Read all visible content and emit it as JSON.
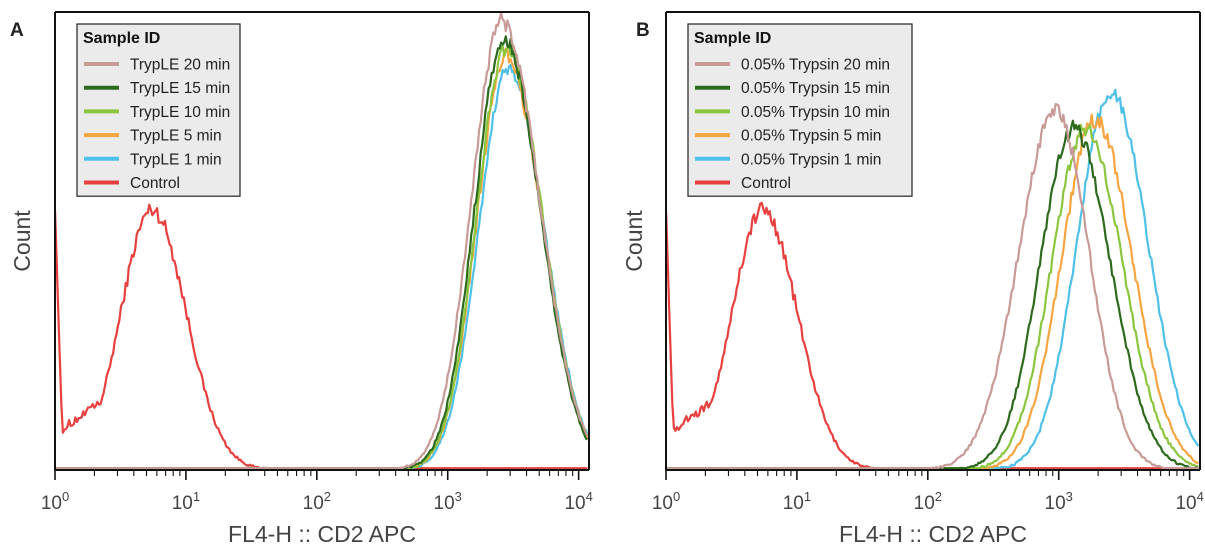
{
  "chart_data": [
    {
      "type": "line",
      "panel_label": "A",
      "xlabel": "FL4-H :: CD2 APC",
      "ylabel": "Count",
      "x_scale": "log",
      "xlim": [
        1,
        12000
      ],
      "x_ticks": [
        {
          "value": 1,
          "base": "10",
          "exp": "0"
        },
        {
          "value": 10,
          "base": "10",
          "exp": "1"
        },
        {
          "value": 100,
          "base": "10",
          "exp": "2"
        },
        {
          "value": 1000,
          "base": "10",
          "exp": "3"
        },
        {
          "value": 10000,
          "base": "10",
          "exp": "4"
        }
      ],
      "y_ticks_shown": false,
      "legend": {
        "title": "Sample ID",
        "placement": "top-left"
      },
      "series": [
        {
          "name": "TrypLE 20 min",
          "color": "#c89a98",
          "peak_x": 2600,
          "peak_y": 100,
          "width_dec": 0.26,
          "skew": 0.1
        },
        {
          "name": "TrypLE 15 min",
          "color": "#2e6a1e",
          "peak_x": 2700,
          "peak_y": 96,
          "width_dec": 0.25,
          "skew": 0.1
        },
        {
          "name": "TrypLE 10 min",
          "color": "#8cc63f",
          "peak_x": 2800,
          "peak_y": 94,
          "width_dec": 0.25,
          "skew": 0.1
        },
        {
          "name": "TrypLE 5 min",
          "color": "#f7a541",
          "peak_x": 2800,
          "peak_y": 92,
          "width_dec": 0.25,
          "skew": 0.1
        },
        {
          "name": "TrypLE 1 min",
          "color": "#4fc1e9",
          "peak_x": 2900,
          "peak_y": 89,
          "width_dec": 0.25,
          "skew": 0.1
        },
        {
          "name": "Control",
          "color": "#e8403f",
          "peak_x": 5.5,
          "peak_y": 58,
          "width_dec": 0.25,
          "skew": 0.05
        }
      ]
    },
    {
      "type": "line",
      "panel_label": "B",
      "xlabel": "FL4-H :: CD2 APC",
      "ylabel": "Count",
      "x_scale": "log",
      "xlim": [
        1,
        12000
      ],
      "x_ticks": [
        {
          "value": 1,
          "base": "10",
          "exp": "0"
        },
        {
          "value": 10,
          "base": "10",
          "exp": "1"
        },
        {
          "value": 100,
          "base": "10",
          "exp": "2"
        },
        {
          "value": 1000,
          "base": "10",
          "exp": "3"
        },
        {
          "value": 10000,
          "base": "10",
          "exp": "4"
        }
      ],
      "y_ticks_shown": false,
      "legend": {
        "title": "Sample ID",
        "placement": "top-left"
      },
      "series": [
        {
          "name": "0.05% Trypsin 20 min",
          "color": "#c89a98",
          "peak_x": 950,
          "peak_y": 80,
          "width_dec": 0.27,
          "skew": -0.05
        },
        {
          "name": "0.05% Trypsin 15 min",
          "color": "#2e6a1e",
          "peak_x": 1300,
          "peak_y": 76,
          "width_dec": 0.27,
          "skew": 0.05
        },
        {
          "name": "0.05% Trypsin 10 min",
          "color": "#8cc63f",
          "peak_x": 1600,
          "peak_y": 76,
          "width_dec": 0.27,
          "skew": 0.05
        },
        {
          "name": "0.05% Trypsin 5 min",
          "color": "#f7a541",
          "peak_x": 1900,
          "peak_y": 78,
          "width_dec": 0.27,
          "skew": 0.05
        },
        {
          "name": "0.05% Trypsin 1 min",
          "color": "#4fc1e9",
          "peak_x": 2500,
          "peak_y": 84,
          "width_dec": 0.27,
          "skew": 0.05
        },
        {
          "name": "Control",
          "color": "#e8403f",
          "peak_x": 5.5,
          "peak_y": 58,
          "width_dec": 0.25,
          "skew": 0.05
        }
      ]
    }
  ]
}
